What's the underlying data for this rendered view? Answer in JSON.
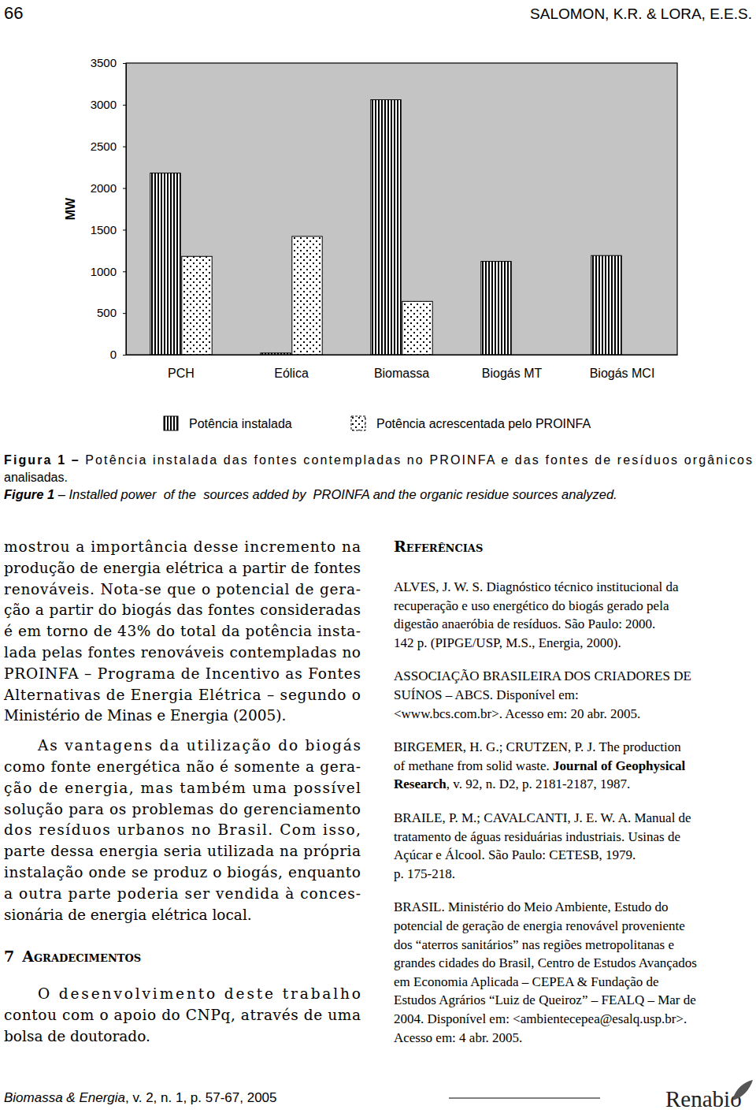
{
  "header": {
    "page": "66",
    "authors": "SALOMON, K.R. & LORA, E.E.S."
  },
  "chart_data": {
    "type": "bar",
    "y_label": "MW",
    "categories": [
      "PCH",
      "Eólica",
      "Biomassa",
      "Biogás MT",
      "Biogás MCI"
    ],
    "series": [
      {
        "name": "Potência instalada",
        "values": [
          2180,
          20,
          3060,
          1120,
          1190
        ]
      },
      {
        "name": "Potência acrescentada pelo PROINFA",
        "values": [
          1180,
          1420,
          640,
          null,
          null
        ]
      }
    ],
    "ylim": [
      0,
      3500
    ],
    "yticks": [
      0,
      500,
      1000,
      1500,
      2000,
      2500,
      3000,
      3500
    ],
    "grid": false,
    "legend": "bottom"
  },
  "caption": {
    "pt": [
      [
        {
          "text": "Figura 1 –",
          "style": "bold"
        },
        " Potência instalada das fontes contempladas no PROINFA e das fontes de resíduos orgânicos"
      ],
      "analisadas."
    ],
    "en": [
      [
        {
          "text": "Figure 1",
          "style": "bold-italic"
        },
        {
          "text": " – Installed power  of the  sources added by  PROINFA and the organic residue sources analyzed.",
          "style": "italic"
        }
      ]
    ]
  },
  "body": {
    "paragraphs": [
      [
        "mostrou a importância desse incremento na",
        "produção de energia elétrica a partir de fontes",
        "renováveis. Nota-se que o potencial de gera-",
        "ção a partir do biogás das fontes consideradas",
        "é em torno de 43% do total da potência insta-",
        "lada pelas fontes renováveis contempladas no",
        "PROINFA – Programa de Incentivo as Fontes",
        "Alternativas de Energia Elétrica – segundo o",
        "Ministério de Minas e Energia (2005)."
      ],
      [
        "As vantagens da utilização do biogás",
        "como fonte energética não é somente a gera-",
        "ção de energia, mas também uma possível",
        "solução para os problemas do gerenciamento",
        "dos resíduos urbanos no Brasil. Com isso,",
        "parte dessa energia seria utilizada na própria",
        "instalação onde se produz o biogás, enquanto",
        "a outra parte poderia ser vendida à conces-",
        "sionária de energia elétrica local."
      ]
    ]
  },
  "section": {
    "number": "7",
    "title": "Agradecimentos",
    "paragraphs": [
      [
        "O desenvolvimento deste trabalho",
        "contou com o apoio do CNPq, através de uma",
        "bolsa de doutorado."
      ]
    ]
  },
  "references": {
    "title": "Referências",
    "items": [
      [
        "ALVES, J. W. S. Diagnóstico técnico institucional da",
        "recuperação e uso energético do biogás gerado pela",
        "digestão anaeróbia de resíduos. São Paulo: 2000.",
        "142 p. (PIPGE/USP, M.S., Energia, 2000)."
      ],
      [
        "ASSOCIAÇÃO BRASILEIRA DOS CRIADORES DE",
        "SUÍNOS – ABCS. Disponível em:",
        "<www.bcs.com.br>. Acesso em: 20 abr. 2005."
      ],
      [
        "BIRGEMER, H. G.; CRUTZEN, P. J. The production",
        [
          "of methane from solid waste. ",
          {
            "text": "Journal of Geophysical",
            "style": "bold"
          }
        ],
        [
          {
            "text": "Research",
            "style": "bold"
          },
          ", v. 92, n. D2, p. 2181-2187, 1987."
        ]
      ],
      [
        "BRAILE, P. M.; CAVALCANTI, J. E. W. A. Manual de",
        "tratamento de águas residuárias industriais. Usinas de",
        "Açúcar e Álcool. São Paulo: CETESB, 1979.",
        "p. 175-218."
      ],
      [
        "BRASIL. Ministério do Meio Ambiente, Estudo do",
        "potencial de geração de energia renovável proveniente",
        "dos “aterros sanitários” nas regiões metropolitanas e",
        "grandes cidades do Brasil, Centro de Estudos Avançados",
        "em Economia Aplicada – CEPEA & Fundação de",
        "Estudos Agrários “Luiz de Queiroz” – FEALQ – Mar de",
        "2004. Disponível em: <ambientecepea@esalq.usp.br>.",
        "Acesso em: 4 abr. 2005."
      ]
    ]
  },
  "footer": {
    "citation": [
      {
        "text": "Biomassa & Energia",
        "style": "italic"
      },
      ", v. 2, n. 1, p. 57-67, 2005"
    ],
    "logo": "Renabio"
  }
}
